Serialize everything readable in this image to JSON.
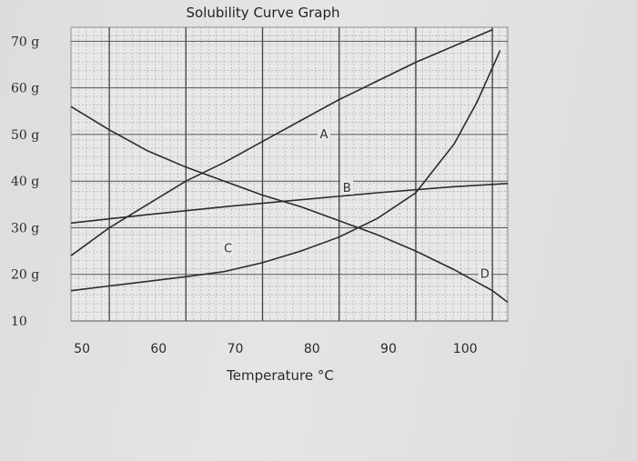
{
  "chart_data": {
    "type": "line",
    "title": "Solubility Curve Graph",
    "xlabel": "Temperature °C",
    "ylabel": "",
    "xlim": [
      45,
      102
    ],
    "ylim": [
      10,
      73
    ],
    "x_ticks": [
      {
        "value": 50,
        "label": "50"
      },
      {
        "value": 60,
        "label": "60"
      },
      {
        "value": 70,
        "label": "70"
      },
      {
        "value": 80,
        "label": "80"
      },
      {
        "value": 90,
        "label": "90"
      },
      {
        "value": 100,
        "label": "100"
      }
    ],
    "y_ticks": [
      {
        "value": 70,
        "label": "70 g"
      },
      {
        "value": 60,
        "label": "60 g"
      },
      {
        "value": 50,
        "label": "50 g"
      },
      {
        "value": 40,
        "label": "40 g"
      },
      {
        "value": 30,
        "label": "30 g"
      },
      {
        "value": 20,
        "label": "20 g"
      },
      {
        "value": 10,
        "label": "10"
      }
    ],
    "grid": true,
    "series": [
      {
        "name": "A",
        "label_at": [
          78,
          50
        ],
        "points": [
          [
            45,
            24
          ],
          [
            50,
            30
          ],
          [
            55,
            35
          ],
          [
            60,
            40
          ],
          [
            65,
            44
          ],
          [
            70,
            48.5
          ],
          [
            75,
            53
          ],
          [
            80,
            57.5
          ],
          [
            85,
            61.5
          ],
          [
            90,
            65.5
          ],
          [
            95,
            69
          ],
          [
            100,
            72.5
          ]
        ]
      },
      {
        "name": "B",
        "label_at": [
          81,
          38.5
        ],
        "points": [
          [
            45,
            31
          ],
          [
            55,
            32.8
          ],
          [
            65,
            34.5
          ],
          [
            75,
            36
          ],
          [
            85,
            37.5
          ],
          [
            95,
            38.8
          ],
          [
            102,
            39.5
          ]
        ]
      },
      {
        "name": "C",
        "label_at": [
          65.5,
          25.5
        ],
        "points": [
          [
            45,
            16.5
          ],
          [
            50,
            17.5
          ],
          [
            55,
            18.5
          ],
          [
            60,
            19.5
          ],
          [
            65,
            20.6
          ],
          [
            70,
            22.5
          ],
          [
            75,
            25
          ],
          [
            80,
            28
          ],
          [
            85,
            32
          ],
          [
            90,
            37.5
          ],
          [
            95,
            48
          ],
          [
            98,
            57
          ],
          [
            101,
            68
          ]
        ]
      },
      {
        "name": "D",
        "label_at": [
          99,
          20
        ],
        "points": [
          [
            45,
            56
          ],
          [
            50,
            51
          ],
          [
            55,
            46.5
          ],
          [
            60,
            43
          ],
          [
            65,
            40
          ],
          [
            70,
            37
          ],
          [
            75,
            34.5
          ],
          [
            80,
            31.5
          ],
          [
            85,
            28.5
          ],
          [
            90,
            25
          ],
          [
            95,
            21
          ],
          [
            100,
            16.5
          ],
          [
            102,
            14
          ]
        ]
      }
    ]
  }
}
